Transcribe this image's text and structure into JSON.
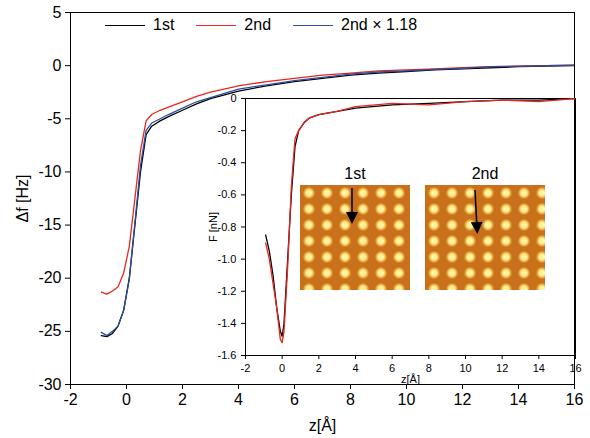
{
  "chart_data": [
    {
      "type": "line",
      "xlabel": "z[Å]",
      "ylabel": "Δf [Hz]",
      "x": [
        -0.9,
        -0.7,
        -0.5,
        -0.3,
        -0.1,
        0.1,
        0.3,
        0.5,
        0.7,
        0.9,
        1.2,
        1.5,
        2,
        2.5,
        3,
        4,
        5,
        6,
        7,
        8,
        9,
        10,
        11,
        12,
        13,
        14,
        15,
        16
      ],
      "series": [
        {
          "name": "1st",
          "color": "#000000",
          "values": [
            -25.4,
            -25.5,
            -25.2,
            -24.5,
            -23,
            -20,
            -15,
            -10,
            -6.5,
            -5.7,
            -5.2,
            -4.8,
            -4.2,
            -3.6,
            -3.1,
            -2.4,
            -1.9,
            -1.5,
            -1.2,
            -0.9,
            -0.7,
            -0.55,
            -0.4,
            -0.3,
            -0.2,
            -0.1,
            -0.05,
            0
          ]
        },
        {
          "name": "2nd",
          "color": "#e8251f",
          "values": [
            -21.3,
            -21.5,
            -21.2,
            -20.8,
            -19.5,
            -17,
            -12.5,
            -8,
            -5.2,
            -4.6,
            -4.2,
            -3.9,
            -3.4,
            -2.9,
            -2.5,
            -1.9,
            -1.5,
            -1.2,
            -0.9,
            -0.7,
            -0.5,
            -0.4,
            -0.3,
            -0.2,
            -0.1,
            -0.05,
            0,
            0.05
          ]
        },
        {
          "name": "2nd × 1.18",
          "color": "#2b4fa0",
          "values": [
            -25.1,
            -25.4,
            -25.0,
            -24.5,
            -23.0,
            -20.1,
            -14.8,
            -9.4,
            -6.1,
            -5.4,
            -5.0,
            -4.6,
            -4.0,
            -3.4,
            -3.0,
            -2.2,
            -1.8,
            -1.4,
            -1.1,
            -0.8,
            -0.6,
            -0.5,
            -0.35,
            -0.25,
            -0.1,
            -0.05,
            0,
            0.05
          ]
        }
      ],
      "xlim": [
        -2,
        16
      ],
      "xticks": [
        -2,
        0,
        2,
        4,
        6,
        8,
        10,
        12,
        14,
        16
      ],
      "ylim": [
        -30,
        5
      ],
      "yticks": [
        -30,
        -25,
        -20,
        -15,
        -10,
        -5,
        0,
        5
      ],
      "legend": "top"
    },
    {
      "type": "line",
      "xlabel": "z[Å]",
      "ylabel": "F [nN]",
      "x": [
        -0.9,
        -0.7,
        -0.5,
        -0.3,
        -0.1,
        0,
        0.1,
        0.3,
        0.5,
        0.7,
        0.9,
        1.2,
        1.5,
        2,
        3,
        4,
        6,
        8,
        10,
        12,
        14,
        16
      ],
      "series": [
        {
          "color": "#000000",
          "values": [
            -0.85,
            -0.95,
            -1.1,
            -1.3,
            -1.45,
            -1.48,
            -1.4,
            -1.0,
            -0.6,
            -0.3,
            -0.2,
            -0.15,
            -0.12,
            -0.1,
            -0.08,
            -0.06,
            -0.04,
            -0.03,
            -0.02,
            -0.01,
            -0.01,
            0
          ]
        },
        {
          "color": "#e8251f",
          "values": [
            -0.9,
            -1.0,
            -1.15,
            -1.3,
            -1.5,
            -1.52,
            -1.45,
            -1.05,
            -0.55,
            -0.25,
            -0.2,
            -0.15,
            -0.12,
            -0.1,
            -0.08,
            -0.05,
            -0.03,
            -0.04,
            -0.02,
            -0.01,
            -0.02,
            0
          ]
        }
      ],
      "xlim": [
        -2,
        16
      ],
      "xticks": [
        -2,
        0,
        2,
        4,
        6,
        8,
        10,
        12,
        14,
        16
      ],
      "ylim": [
        -1.6,
        0
      ],
      "yticks": [
        0,
        -0.2,
        -0.4,
        -0.6,
        -0.8,
        {
          "value": -1,
          "label": "-1.0"
        },
        -1.2,
        -1.4,
        -1.6
      ],
      "annotations": [
        "1st",
        "2nd"
      ]
    }
  ]
}
